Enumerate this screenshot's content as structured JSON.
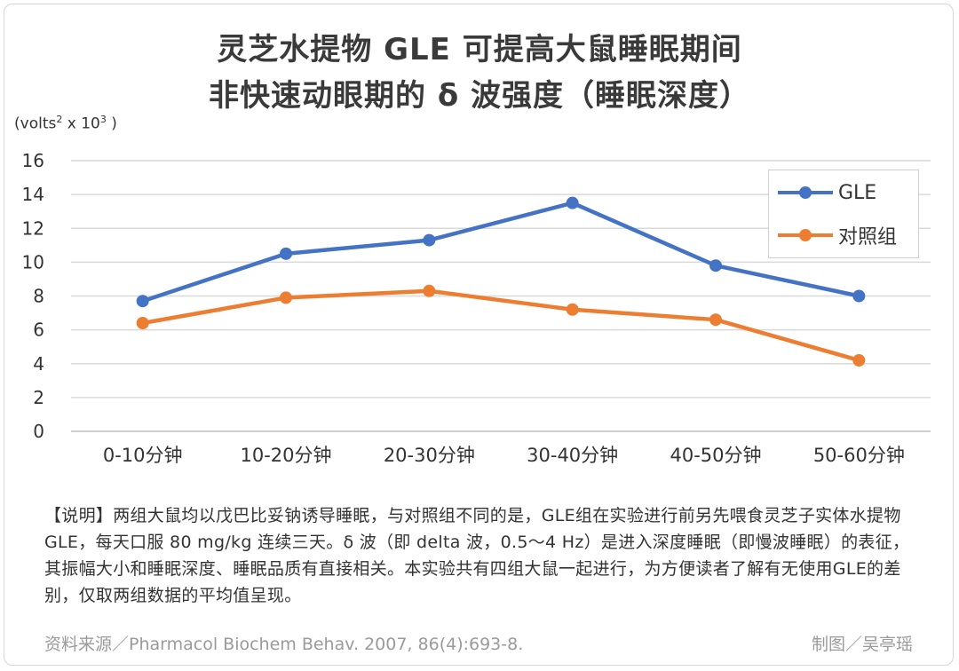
{
  "title_line1": "灵芝水提物 GLE 可提高大鼠睡眠期间",
  "title_line2": "非快速动眼期的 δ 波强度（睡眠深度）",
  "unit": {
    "pre": "(volts",
    "sup1": "2",
    "mid": " x 10",
    "sup2": "3",
    "post": " )"
  },
  "note": "【说明】两组大鼠均以戊巴比妥钠诱导睡眠，与对照组不同的是，GLE组在实验进行前另先喂食灵芝子实体水提物 GLE，每天口服 80 mg/kg 连续三天。δ 波（即 delta 波，0.5～4 Hz）是进入深度睡眠（即慢波睡眠）的表征，其振幅大小和睡眠深度、睡眠品质有直接相关。本实验共有四组大鼠一起进行，为方便读者了解有无使用GLE的差别，仅取两组数据的平均值呈现。",
  "source": "资料来源／Pharmacol Biochem Behav. 2007, 86(4):693-8.",
  "credit": "制图／吴亭瑶",
  "colors": {
    "gle": "#4472C4",
    "control": "#ED7D31",
    "grid": "#d9d9d9"
  },
  "chart_data": {
    "type": "line",
    "categories": [
      "0-10分钟",
      "10-20分钟",
      "20-30分钟",
      "30-40分钟",
      "40-50分钟",
      "50-60分钟"
    ],
    "series": [
      {
        "name": "GLE",
        "values": [
          7.7,
          10.5,
          11.3,
          13.5,
          9.8,
          8.0
        ]
      },
      {
        "name": "对照组",
        "values": [
          6.4,
          7.9,
          8.3,
          7.2,
          6.6,
          4.2
        ]
      }
    ],
    "ylim": [
      0,
      16
    ],
    "yticks": [
      "0",
      "2",
      "4",
      "6",
      "8",
      "10",
      "12",
      "14",
      "16"
    ],
    "grid": true,
    "legend_position": "top-right"
  }
}
